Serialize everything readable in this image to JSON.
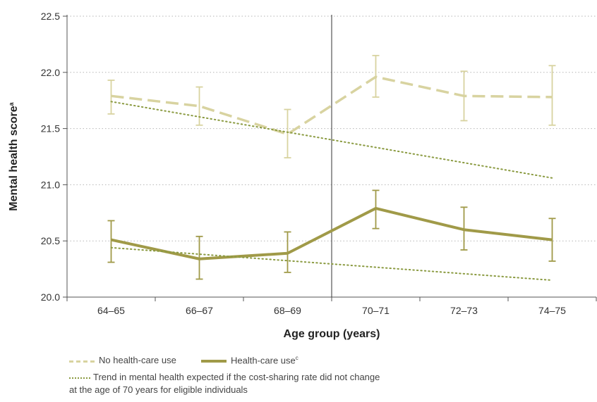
{
  "chart_data": {
    "type": "line",
    "categories": [
      "64–65",
      "66–67",
      "68–69",
      "70–71",
      "72–73",
      "74–75"
    ],
    "xlabel": "Age group (years)",
    "ylabel": "Mental health score",
    "ylabel_sup": "a",
    "ylim": [
      20.0,
      22.5
    ],
    "yticks": [
      "20.0",
      "20.5",
      "21.0",
      "21.5",
      "22.0",
      "22.5"
    ],
    "grid": "horizontal dotted",
    "cutoff_between": [
      "68–69",
      "70–71"
    ],
    "series": [
      {
        "name": "No health-care use",
        "style": "dashed",
        "color": "#d8d3a0",
        "values": [
          21.79,
          21.7,
          21.45,
          21.96,
          21.79,
          21.78
        ],
        "err_low": [
          21.63,
          21.53,
          21.24,
          21.78,
          21.57,
          21.53
        ],
        "err_high": [
          21.93,
          21.87,
          21.67,
          22.15,
          22.01,
          22.06
        ]
      },
      {
        "name": "Health-care use",
        "name_sup": "c",
        "style": "solid",
        "color": "#a09a48",
        "values": [
          20.51,
          20.34,
          20.39,
          20.79,
          20.6,
          20.51
        ],
        "err_low": [
          20.31,
          20.16,
          20.22,
          20.61,
          20.42,
          20.32
        ],
        "err_high": [
          20.68,
          20.54,
          20.58,
          20.95,
          20.8,
          20.7
        ]
      },
      {
        "name": "Trend in mental health expected if the cost-sharing rate did not change at the age of 70 years for eligible individuals",
        "style": "dotted",
        "color": "#8a9a40",
        "segments": [
          {
            "x": [
              "64–65",
              "74–75"
            ],
            "y": [
              21.74,
              21.06
            ]
          },
          {
            "x": [
              "64–65",
              "74–75"
            ],
            "y": [
              20.44,
              20.15
            ]
          }
        ]
      }
    ],
    "legend": {
      "item1": "No health-care use",
      "item2": "Health-care use",
      "item2_sup": "c",
      "item3_line1": "Trend in mental health expected if the cost-sharing rate did not change",
      "item3_line2": "at the age of 70 years for eligible individuals"
    }
  }
}
